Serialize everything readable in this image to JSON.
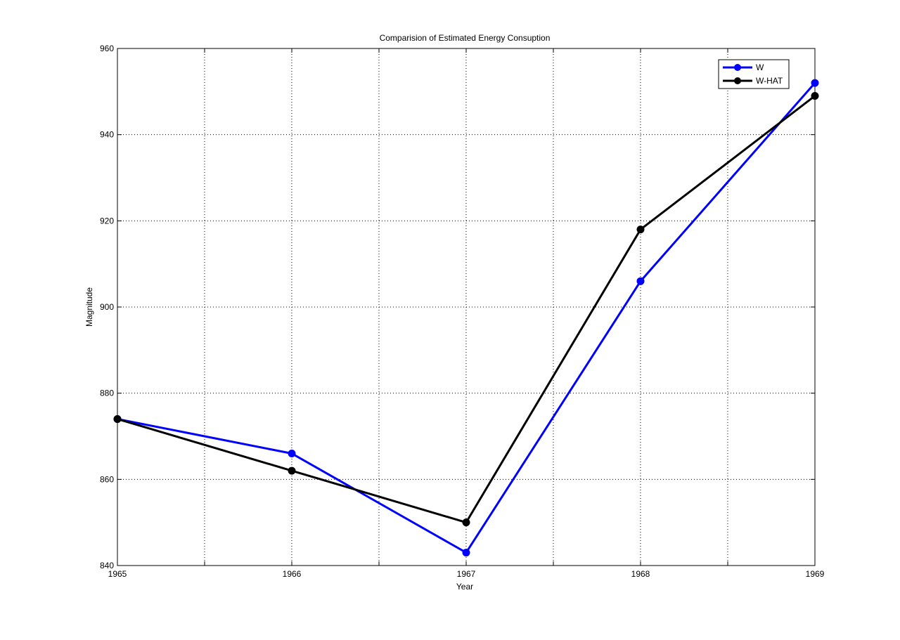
{
  "chart_data": {
    "type": "line",
    "title": "Comparision of Estimated Energy Consuption",
    "xlabel": "Year",
    "ylabel": "Magnitude",
    "xlim": [
      1965,
      1969
    ],
    "ylim": [
      840,
      960
    ],
    "x_ticks": [
      1965,
      1966,
      1967,
      1968,
      1969
    ],
    "x_minor_ticks": [
      1965.5,
      1966.5,
      1967.5,
      1968.5
    ],
    "y_ticks": [
      840,
      860,
      880,
      900,
      920,
      940,
      960
    ],
    "x_tick_labels": [
      "1965",
      "1966",
      "1967",
      "1968",
      "1969"
    ],
    "y_tick_labels": [
      "840",
      "860",
      "880",
      "900",
      "920",
      "940",
      "960"
    ],
    "grid": true,
    "legend_position": "top-right",
    "x": [
      1965,
      1966,
      1967,
      1968,
      1969
    ],
    "series": [
      {
        "name": "W",
        "values": [
          874,
          866,
          843,
          906,
          952
        ],
        "color": "#0000ff"
      },
      {
        "name": "W-HAT",
        "values": [
          874,
          862,
          850,
          918,
          949
        ],
        "color": "#000000"
      }
    ]
  }
}
